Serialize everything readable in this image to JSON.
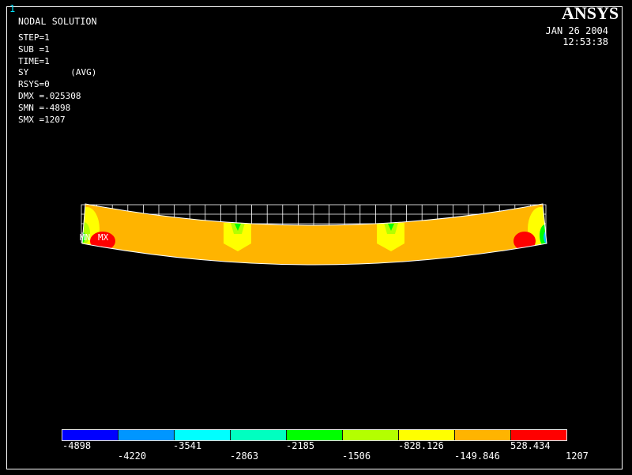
{
  "viewport": {
    "window_number": "1",
    "title": "NODAL SOLUTION"
  },
  "info_lines": [
    "STEP=1",
    "SUB =1",
    "TIME=1",
    "SY        (AVG)",
    "RSYS=0",
    "DMX =.025308",
    "SMN =-4898",
    "SMX =1207"
  ],
  "timestamp": {
    "date": "JAN 26 2004",
    "time": "12:53:38"
  },
  "logo": {
    "text": "ANSYS"
  },
  "markers": {
    "mn": "MN",
    "mx": "MX"
  },
  "legend": {
    "colors": [
      "#0000ff",
      "#0096ff",
      "#00ffff",
      "#00ffc0",
      "#00ff00",
      "#b4ff00",
      "#ffff00",
      "#ffb400",
      "#ff0000"
    ],
    "bottom_labels": [
      "-4898",
      "-3541",
      "-2185",
      "-828.126",
      "528.434"
    ],
    "top_labels": [
      "-4220",
      "-2863",
      "-1506",
      "-149.846",
      "1207"
    ]
  }
}
